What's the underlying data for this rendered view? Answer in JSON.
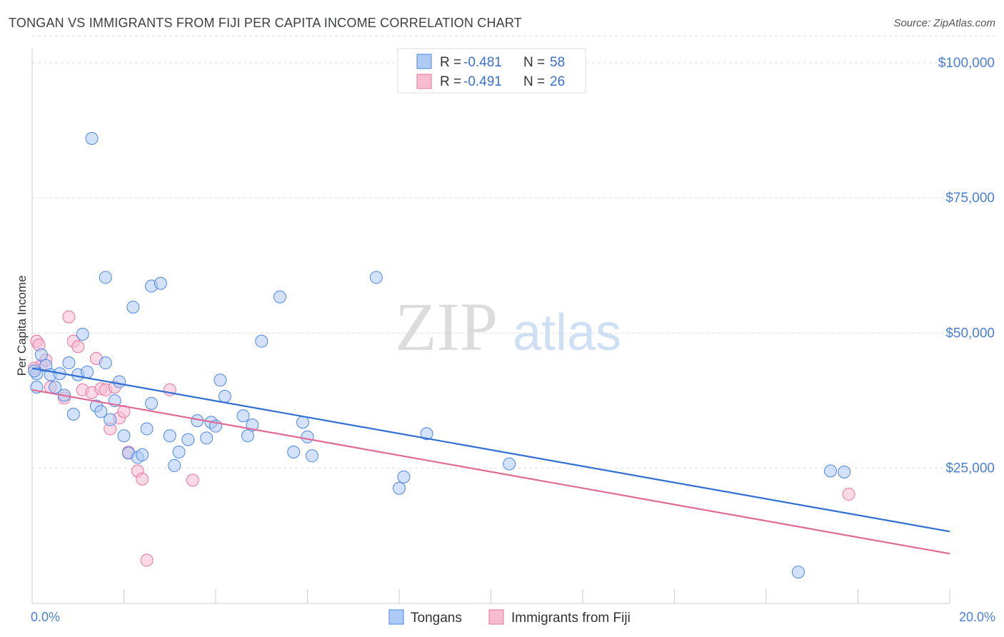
{
  "header": {
    "title": "TONGAN VS IMMIGRANTS FROM FIJI PER CAPITA INCOME CORRELATION CHART",
    "source": "Source: ZipAtlas.com"
  },
  "watermark": {
    "zip": "ZIP",
    "atlas": "atlas"
  },
  "legend": {
    "series1": {
      "r_label": "R =",
      "r_value": "-0.481",
      "n_label": "N =",
      "n_value": "58"
    },
    "series2": {
      "r_label": "R =",
      "r_value": "-0.491",
      "n_label": "N =",
      "n_value": "26"
    }
  },
  "bottom_legend": [
    "Tongans",
    "Immigrants from Fiji"
  ],
  "chart_data": {
    "type": "scatter",
    "ylabel": "Per Capita Income",
    "xlim": [
      0,
      20
    ],
    "ylim": [
      0,
      105000
    ],
    "x_tick_labels": [
      "0.0%",
      "20.0%"
    ],
    "y_ticks": [
      25000,
      50000,
      75000,
      100000
    ],
    "y_tick_labels": [
      "$25,000",
      "$50,000",
      "$75,000",
      "$100,000"
    ],
    "grid": true,
    "colors": {
      "tongans": "#4a86e8",
      "fiji": "#e8739e",
      "tongans_fill": "#aecbf5",
      "fiji_fill": "#f7bcd0"
    },
    "series": [
      {
        "name": "Tongans",
        "trend": {
          "x": [
            0,
            20
          ],
          "y": [
            43500,
            13300
          ]
        },
        "points": [
          [
            0.1,
            42500
          ],
          [
            0.1,
            40000
          ],
          [
            0.2,
            46000
          ],
          [
            0.3,
            44000
          ],
          [
            0.4,
            42300
          ],
          [
            0.5,
            40000
          ],
          [
            0.6,
            42500
          ],
          [
            0.7,
            38500
          ],
          [
            0.8,
            44500
          ],
          [
            0.9,
            35000
          ],
          [
            1.0,
            42300
          ],
          [
            1.1,
            49800
          ],
          [
            1.2,
            42800
          ],
          [
            1.3,
            86000
          ],
          [
            1.4,
            36500
          ],
          [
            1.5,
            35500
          ],
          [
            1.6,
            44500
          ],
          [
            1.6,
            60300
          ],
          [
            1.7,
            34000
          ],
          [
            1.8,
            37500
          ],
          [
            1.9,
            41000
          ],
          [
            2.0,
            31000
          ],
          [
            2.1,
            27800
          ],
          [
            2.2,
            54800
          ],
          [
            2.3,
            27000
          ],
          [
            2.4,
            27500
          ],
          [
            2.5,
            32300
          ],
          [
            2.6,
            58700
          ],
          [
            2.6,
            37000
          ],
          [
            2.8,
            59200
          ],
          [
            3.0,
            31000
          ],
          [
            3.1,
            25500
          ],
          [
            3.2,
            28000
          ],
          [
            3.4,
            30300
          ],
          [
            3.6,
            33800
          ],
          [
            3.8,
            30600
          ],
          [
            3.9,
            33500
          ],
          [
            4.0,
            32800
          ],
          [
            4.1,
            41300
          ],
          [
            4.2,
            38300
          ],
          [
            4.6,
            34700
          ],
          [
            4.7,
            31000
          ],
          [
            4.8,
            33000
          ],
          [
            5.0,
            48500
          ],
          [
            5.4,
            56700
          ],
          [
            5.7,
            28000
          ],
          [
            5.9,
            33500
          ],
          [
            6.0,
            30800
          ],
          [
            6.1,
            27300
          ],
          [
            7.5,
            60300
          ],
          [
            8.0,
            21300
          ],
          [
            8.1,
            23400
          ],
          [
            8.6,
            31400
          ],
          [
            10.4,
            25800
          ],
          [
            16.7,
            5800
          ],
          [
            17.4,
            24500
          ],
          [
            17.7,
            24300
          ],
          [
            0.05,
            43000
          ]
        ]
      },
      {
        "name": "Immigrants from Fiji",
        "trend": {
          "x": [
            0,
            20
          ],
          "y": [
            39500,
            9200
          ]
        },
        "points": [
          [
            0.1,
            48500
          ],
          [
            0.15,
            47800
          ],
          [
            0.2,
            44000
          ],
          [
            0.3,
            45000
          ],
          [
            0.4,
            40000
          ],
          [
            0.7,
            38000
          ],
          [
            0.8,
            53000
          ],
          [
            0.9,
            48500
          ],
          [
            1.0,
            47500
          ],
          [
            1.1,
            39500
          ],
          [
            1.3,
            39000
          ],
          [
            1.4,
            45300
          ],
          [
            1.5,
            39700
          ],
          [
            1.6,
            39500
          ],
          [
            1.7,
            32300
          ],
          [
            1.8,
            40000
          ],
          [
            1.9,
            34300
          ],
          [
            2.0,
            35500
          ],
          [
            2.1,
            28000
          ],
          [
            2.3,
            24500
          ],
          [
            2.4,
            23000
          ],
          [
            2.5,
            8000
          ],
          [
            3.0,
            39500
          ],
          [
            3.5,
            22800
          ],
          [
            17.8,
            20200
          ],
          [
            0.05,
            43500
          ]
        ]
      }
    ]
  }
}
